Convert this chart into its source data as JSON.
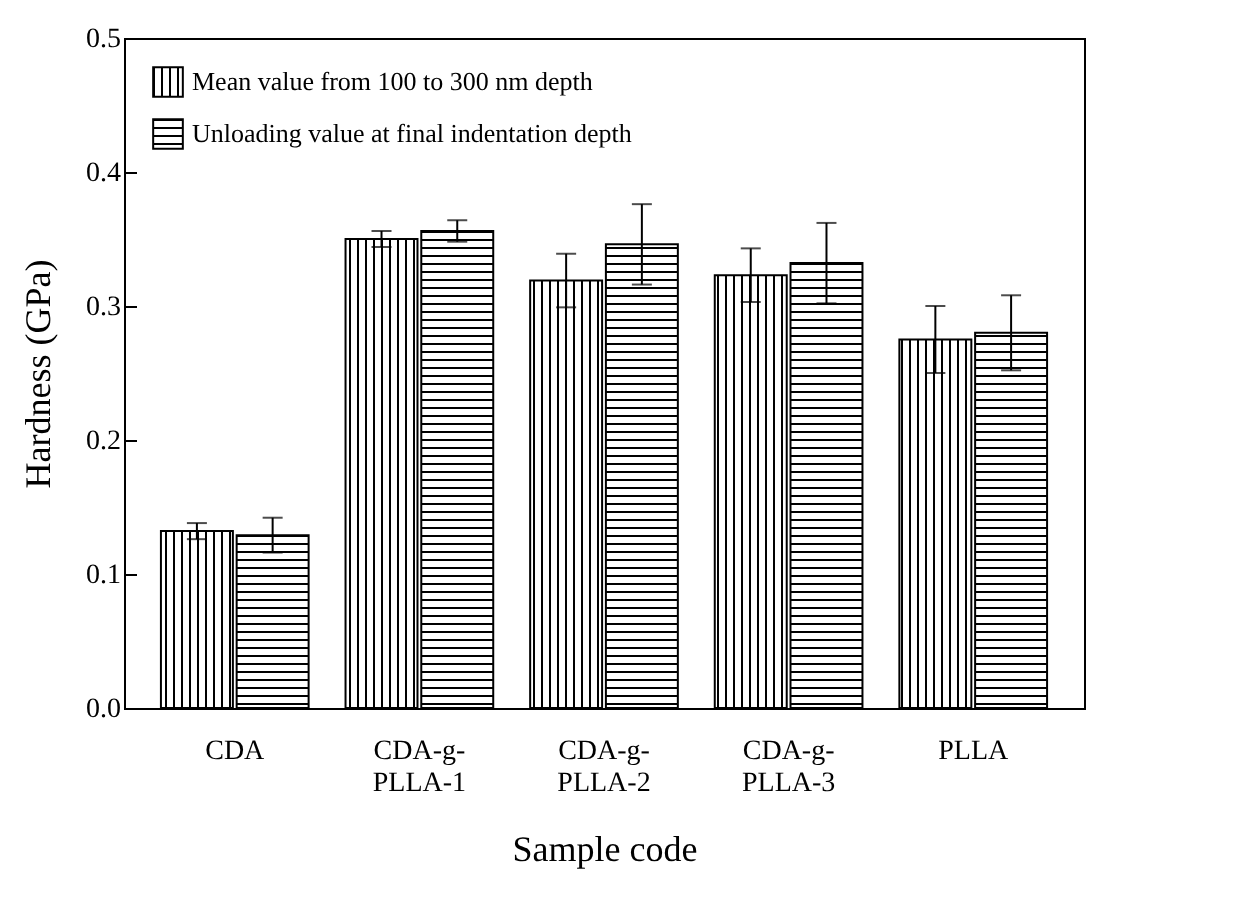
{
  "chart_data": {
    "type": "bar",
    "xlabel": "Sample code",
    "ylabel": "Hardness (GPa)",
    "categories": [
      "CDA",
      "CDA-g-PLLA-1",
      "CDA-g-PLLA-2",
      "CDA-g-PLLA-3",
      "PLLA"
    ],
    "series": [
      {
        "name": "Mean value  from 100 to 300 nm depth",
        "color": "#000000",
        "values": [
          0.132,
          0.35,
          0.319,
          0.323,
          0.275
        ],
        "errors": [
          0.006,
          0.006,
          0.02,
          0.02,
          0.025
        ]
      },
      {
        "name": "Unloading value at final indentation depth",
        "color": "#000000",
        "values": [
          0.129,
          0.356,
          0.346,
          0.332,
          0.28
        ],
        "errors": [
          0.013,
          0.008,
          0.03,
          0.03,
          0.028
        ]
      }
    ],
    "ylim": [
      0,
      0.5
    ],
    "yticks": [
      {
        "value": 0,
        "label": "0.0"
      },
      {
        "value": 0.1,
        "label": "0.1"
      },
      {
        "value": 0.2,
        "label": "0.2"
      },
      {
        "value": 0.3,
        "label": "0.3"
      },
      {
        "value": 0.4,
        "label": "0.4"
      },
      {
        "value": 0.5,
        "label": "0.5"
      }
    ],
    "grid": false,
    "legend": "top left"
  }
}
